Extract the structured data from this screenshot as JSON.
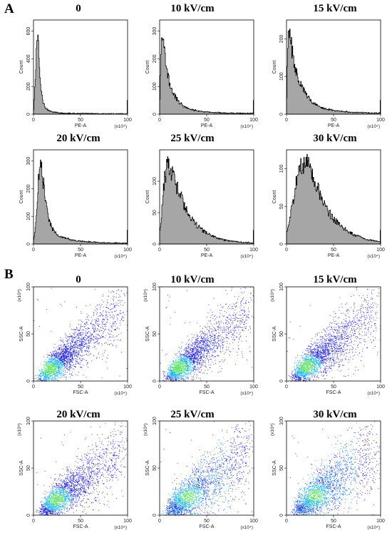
{
  "panels": {
    "A": {
      "letter": "A"
    },
    "B": {
      "letter": "B"
    }
  },
  "histograms": {
    "common": {
      "xlabel": "PE-A",
      "ylabel": "Count",
      "x_scale": "(x10⁴)",
      "x_ticks": [
        "0",
        "50",
        "100"
      ]
    },
    "plots": [
      {
        "title": "0",
        "y_ticks": [
          "0",
          "200",
          "400",
          "600"
        ]
      },
      {
        "title": "10 kV/cm",
        "y_ticks": [
          "0",
          "100",
          "200",
          "300"
        ]
      },
      {
        "title": "15 kV/cm",
        "y_ticks": [
          "0",
          "100",
          "200"
        ]
      },
      {
        "title": "20 kV/cm",
        "y_ticks": [
          "0",
          "100",
          "200",
          "300"
        ]
      },
      {
        "title": "25 kV/cm",
        "y_ticks": [
          "0",
          "50",
          "100"
        ]
      },
      {
        "title": "30 kV/cm",
        "y_ticks": [
          "0",
          "50",
          "100"
        ]
      }
    ]
  },
  "scatters": {
    "common": {
      "xlabel": "FSC-A",
      "ylabel": "SSC-A",
      "x_scale": "(x10⁴)",
      "y_scale": "(x10⁴)",
      "x_ticks": [
        "0",
        "50",
        "100"
      ],
      "y_ticks": [
        "0",
        "50",
        "100"
      ]
    },
    "plots": [
      {
        "title": "0"
      },
      {
        "title": "10 kV/cm"
      },
      {
        "title": "15 kV/cm"
      },
      {
        "title": "20 kV/cm"
      },
      {
        "title": "25 kV/cm"
      },
      {
        "title": "30 kV/cm"
      }
    ]
  },
  "colors": {
    "hist_fill": "#a6a6a6",
    "hist_line": "#000000",
    "dens_low": "#1f1fd6",
    "dens_mid": "#27b5e8",
    "dens_high": "#5fe36a"
  },
  "chart_data": [
    {
      "type": "area",
      "title": "0",
      "xlabel": "PE-A",
      "ylabel": "Count",
      "xlim": [
        0,
        100
      ],
      "ylim": [
        0,
        680
      ],
      "x": [
        0,
        2,
        3,
        4,
        5,
        6,
        8,
        10,
        12,
        15,
        20,
        30,
        50,
        70,
        100
      ],
      "y": [
        30,
        300,
        520,
        560,
        470,
        330,
        160,
        90,
        55,
        30,
        15,
        8,
        5,
        3,
        2
      ]
    },
    {
      "type": "area",
      "title": "10 kV/cm",
      "xlabel": "PE-A",
      "ylabel": "Count",
      "xlim": [
        0,
        100
      ],
      "ylim": [
        0,
        340
      ],
      "x": [
        0,
        1,
        2,
        4,
        6,
        8,
        10,
        15,
        20,
        25,
        30,
        40,
        50,
        70,
        100
      ],
      "y": [
        50,
        230,
        290,
        240,
        190,
        150,
        115,
        70,
        45,
        30,
        20,
        12,
        8,
        4,
        3
      ]
    },
    {
      "type": "area",
      "title": "15 kV/cm",
      "xlabel": "PE-A",
      "ylabel": "Count",
      "xlim": [
        0,
        100
      ],
      "ylim": [
        0,
        250
      ],
      "x": [
        0,
        1,
        2,
        4,
        6,
        8,
        10,
        15,
        20,
        25,
        30,
        40,
        50,
        70,
        100
      ],
      "y": [
        40,
        170,
        220,
        195,
        165,
        140,
        115,
        80,
        55,
        38,
        27,
        15,
        10,
        5,
        3
      ]
    },
    {
      "type": "area",
      "title": "20 kV/cm",
      "xlabel": "PE-A",
      "ylabel": "Count",
      "xlim": [
        0,
        100
      ],
      "ylim": [
        0,
        340
      ],
      "x": [
        0,
        2,
        4,
        6,
        8,
        10,
        12,
        15,
        20,
        25,
        30,
        40,
        50,
        70,
        100
      ],
      "y": [
        15,
        60,
        180,
        270,
        290,
        230,
        160,
        100,
        55,
        35,
        25,
        15,
        10,
        5,
        3
      ]
    },
    {
      "type": "area",
      "title": "25 kV/cm",
      "xlabel": "PE-A",
      "ylabel": "Count",
      "xlim": [
        0,
        100
      ],
      "ylim": [
        0,
        150
      ],
      "x": [
        0,
        2,
        4,
        7,
        10,
        13,
        16,
        20,
        25,
        30,
        35,
        40,
        50,
        60,
        70,
        85,
        100
      ],
      "y": [
        20,
        50,
        95,
        120,
        128,
        112,
        98,
        84,
        66,
        50,
        38,
        29,
        17,
        10,
        6,
        3,
        2
      ]
    },
    {
      "type": "area",
      "title": "30 kV/cm",
      "xlabel": "PE-A",
      "ylabel": "Count",
      "xlim": [
        0,
        100
      ],
      "ylim": [
        0,
        125
      ],
      "x": [
        0,
        2,
        5,
        8,
        12,
        16,
        20,
        24,
        28,
        32,
        36,
        40,
        45,
        50,
        60,
        70,
        85,
        100
      ],
      "y": [
        15,
        28,
        45,
        68,
        90,
        104,
        110,
        104,
        92,
        78,
        64,
        54,
        42,
        33,
        22,
        13,
        6,
        3
      ]
    },
    {
      "type": "scatter",
      "title": "0",
      "xlabel": "FSC-A",
      "ylabel": "SSC-A",
      "xlim": [
        0,
        100
      ],
      "ylim": [
        0,
        100
      ],
      "density_center": [
        17,
        13
      ],
      "trend_slope": 0.85,
      "spread": "narrow"
    },
    {
      "type": "scatter",
      "title": "10 kV/cm",
      "xlabel": "FSC-A",
      "ylabel": "SSC-A",
      "xlim": [
        0,
        100
      ],
      "ylim": [
        0,
        100
      ],
      "density_center": [
        20,
        15
      ],
      "trend_slope": 0.8,
      "spread": "narrow"
    },
    {
      "type": "scatter",
      "title": "15 kV/cm",
      "xlabel": "FSC-A",
      "ylabel": "SSC-A",
      "xlim": [
        0,
        100
      ],
      "ylim": [
        0,
        100
      ],
      "density_center": [
        21,
        16
      ],
      "trend_slope": 0.8,
      "spread": "medium"
    },
    {
      "type": "scatter",
      "title": "20 kV/cm",
      "xlabel": "FSC-A",
      "ylabel": "SSC-A",
      "xlim": [
        0,
        100
      ],
      "ylim": [
        0,
        100
      ],
      "density_center": [
        24,
        17
      ],
      "trend_slope": 0.75,
      "spread": "medium"
    },
    {
      "type": "scatter",
      "title": "25 kV/cm",
      "xlabel": "FSC-A",
      "ylabel": "SSC-A",
      "xlim": [
        0,
        100
      ],
      "ylim": [
        0,
        100
      ],
      "density_center": [
        30,
        20
      ],
      "trend_slope": 0.72,
      "spread": "wide"
    },
    {
      "type": "scatter",
      "title": "30 kV/cm",
      "xlabel": "FSC-A",
      "ylabel": "SSC-A",
      "xlim": [
        0,
        100
      ],
      "ylim": [
        0,
        100
      ],
      "density_center": [
        30,
        21
      ],
      "trend_slope": 0.72,
      "spread": "wide"
    }
  ]
}
